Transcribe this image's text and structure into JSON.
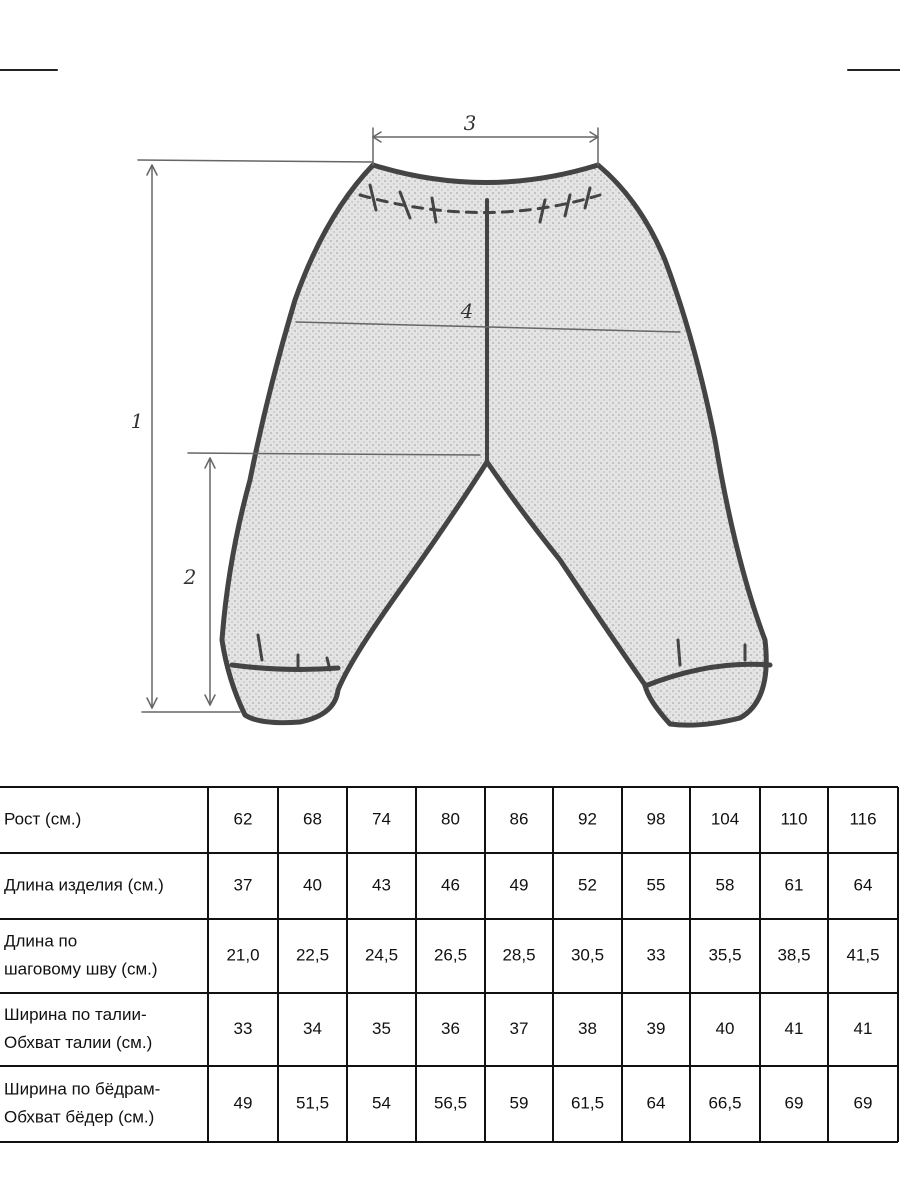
{
  "diagram": {
    "labels": [
      "3",
      "4",
      "1",
      "2"
    ]
  },
  "table": {
    "rows": [
      [
        [
          "Рост (см.)"
        ],
        "62",
        "68",
        "74",
        "80",
        "86",
        "92",
        "98",
        "104",
        "110",
        "116"
      ],
      [
        [
          "Длина изделия (см.)"
        ],
        "37",
        "40",
        "43",
        "46",
        "49",
        "52",
        "55",
        "58",
        "61",
        "64"
      ],
      [
        [
          "Длина по",
          "шаговому шву (см.)"
        ],
        "21,0",
        "22,5",
        "24,5",
        "26,5",
        "28,5",
        "30,5",
        "33",
        "35,5",
        "38,5",
        "41,5"
      ],
      [
        [
          "Ширина по талии-",
          "Обхват талии (см.)"
        ],
        "33",
        "34",
        "35",
        "36",
        "37",
        "38",
        "39",
        "40",
        "41",
        "41"
      ],
      [
        [
          "Ширина по бёдрам-",
          "Обхват бёдер (см.)"
        ],
        "49",
        "51,5",
        "54",
        "56,5",
        "59",
        "61,5",
        "64",
        "66,5",
        "69",
        "69"
      ]
    ]
  }
}
